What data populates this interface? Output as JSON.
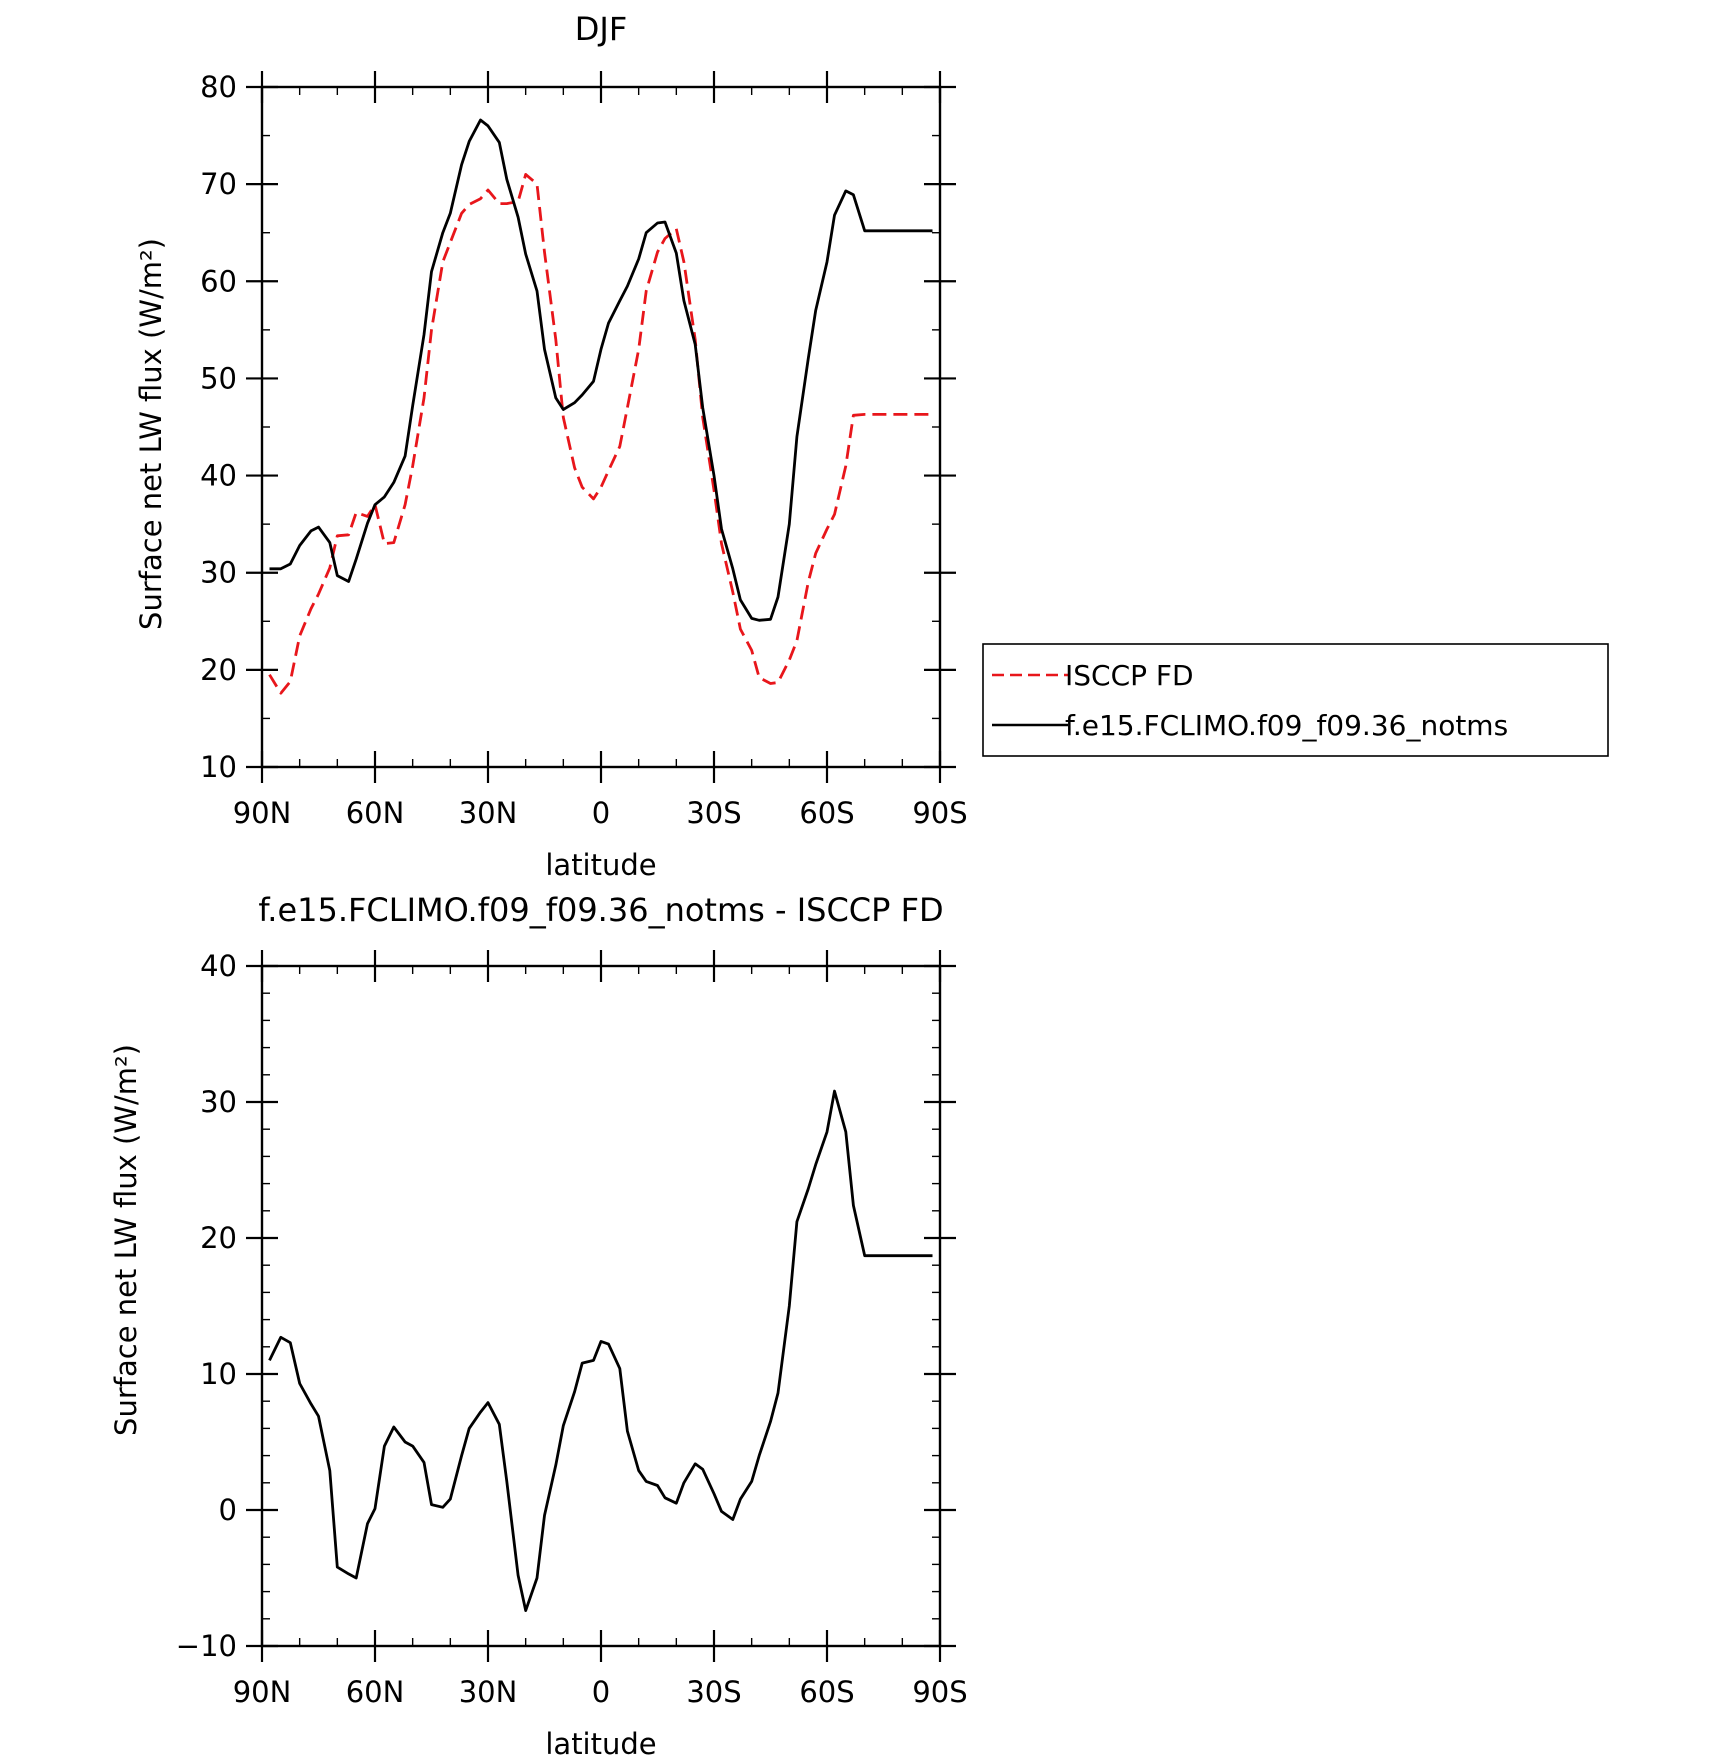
{
  "chart_data": [
    {
      "type": "line",
      "title": "DJF",
      "xlabel": "latitude",
      "ylabel": "Surface net LW flux (W/m²)",
      "xlim": [
        -90,
        90
      ],
      "ylim": [
        10,
        80
      ],
      "x_ticks": [
        {
          "value": -90,
          "label": "90N"
        },
        {
          "value": -60,
          "label": "60N"
        },
        {
          "value": -30,
          "label": "30N"
        },
        {
          "value": 0,
          "label": "0"
        },
        {
          "value": 30,
          "label": "30S"
        },
        {
          "value": 60,
          "label": "60S"
        },
        {
          "value": 90,
          "label": "90S"
        }
      ],
      "y_ticks": [
        {
          "value": 10,
          "label": "10"
        },
        {
          "value": 20,
          "label": "20"
        },
        {
          "value": 30,
          "label": "30"
        },
        {
          "value": 40,
          "label": "40"
        },
        {
          "value": 50,
          "label": "50"
        },
        {
          "value": 60,
          "label": "60"
        },
        {
          "value": 70,
          "label": "70"
        },
        {
          "value": 80,
          "label": "80"
        }
      ],
      "grid": false,
      "legend_placement": "right",
      "series": [
        {
          "name": "ISCCP FD",
          "color": "#e8161b",
          "dash": "dashed",
          "x": [
            -88,
            -85,
            -82.5,
            -80,
            -77,
            -75,
            -72,
            -70,
            -67,
            -65,
            -62,
            -60,
            -57.5,
            -55,
            -52,
            -50,
            -47,
            -45,
            -42,
            -40,
            -37,
            -35,
            -32,
            -30,
            -27,
            -25,
            -22,
            -20,
            -17,
            -15,
            -12,
            -10,
            -7,
            -5,
            -2,
            0,
            2,
            5,
            7,
            10,
            12,
            15,
            17,
            20,
            22,
            25,
            27,
            30,
            32,
            35,
            37,
            40,
            42,
            45,
            47,
            50,
            52,
            55,
            57,
            60,
            62,
            65,
            67,
            70,
            72,
            75,
            77,
            80,
            82,
            85,
            88
          ],
          "y": [
            19.5,
            17.6,
            18.8,
            23.5,
            26.3,
            27.8,
            30.5,
            33.8,
            33.9,
            36.2,
            35.8,
            37,
            33,
            33.1,
            37,
            41,
            48,
            55,
            62,
            64,
            67,
            67.9,
            68.5,
            69.4,
            68,
            68,
            68.2,
            71,
            70,
            63,
            54,
            46,
            40.8,
            38.8,
            37.6,
            38.8,
            40.5,
            43,
            47,
            53,
            59,
            63,
            64.4,
            65.4,
            62,
            54,
            46,
            38.5,
            33,
            28,
            24.2,
            22,
            19.2,
            18.6,
            18.7,
            21,
            23,
            29,
            32,
            34.5,
            36,
            41,
            46.2,
            46.3,
            46.3,
            46.3,
            46.3,
            46.3,
            46.3,
            46.3,
            46.3
          ]
        },
        {
          "name": "f.e15.FCLIMO.f09_f09.36_notms",
          "color": "#000000",
          "dash": "solid",
          "x": [
            -88,
            -85,
            -82.5,
            -80,
            -77,
            -75,
            -72,
            -70,
            -67,
            -65,
            -62,
            -60,
            -57.5,
            -55,
            -52,
            -50,
            -47,
            -45,
            -42,
            -40,
            -37,
            -35,
            -32,
            -30,
            -27,
            -25,
            -22,
            -20,
            -17,
            -15,
            -12,
            -10,
            -7,
            -5,
            -2,
            0,
            2,
            5,
            7,
            10,
            12,
            15,
            17,
            20,
            22,
            25,
            27,
            30,
            32,
            35,
            37,
            40,
            42,
            45,
            47,
            50,
            52,
            55,
            57,
            60,
            62,
            65,
            67,
            70,
            72,
            75,
            77,
            80,
            82,
            85,
            88
          ],
          "y": [
            30.4,
            30.4,
            30.9,
            32.8,
            34.3,
            34.7,
            33.1,
            29.7,
            29.1,
            31.4,
            35.1,
            37,
            37.8,
            39.3,
            42,
            47.2,
            54.5,
            61,
            65,
            67,
            72,
            74.4,
            76.6,
            76,
            74.3,
            70.5,
            66.6,
            62.8,
            59,
            53,
            48,
            46.8,
            47.5,
            48.3,
            49.7,
            53,
            55.7,
            58,
            59.5,
            62.3,
            65,
            66,
            66.1,
            62.9,
            58,
            53.5,
            47,
            40,
            34.5,
            30.4,
            27.2,
            25.3,
            25.1,
            25.2,
            27.5,
            35,
            44,
            52,
            57,
            62,
            66.8,
            69.3,
            68.9,
            65.2,
            65.2,
            65.2,
            65.2,
            65.2,
            65.2,
            65.2,
            65.2
          ]
        }
      ]
    },
    {
      "type": "line",
      "title": "f.e15.FCLIMO.f09_f09.36_notms - ISCCP FD",
      "xlabel": "latitude",
      "ylabel": "Surface net LW flux (W/m²)",
      "xlim": [
        -90,
        90
      ],
      "ylim": [
        -10,
        40
      ],
      "x_ticks": [
        {
          "value": -90,
          "label": "90N"
        },
        {
          "value": -60,
          "label": "60N"
        },
        {
          "value": -30,
          "label": "30N"
        },
        {
          "value": 0,
          "label": "0"
        },
        {
          "value": 30,
          "label": "30S"
        },
        {
          "value": 60,
          "label": "60S"
        },
        {
          "value": 90,
          "label": "90S"
        }
      ],
      "y_ticks": [
        {
          "value": -10,
          "label": "−10"
        },
        {
          "value": 0,
          "label": "0"
        },
        {
          "value": 10,
          "label": "10"
        },
        {
          "value": 20,
          "label": "20"
        },
        {
          "value": 30,
          "label": "30"
        },
        {
          "value": 40,
          "label": "40"
        }
      ],
      "grid": false,
      "series": [
        {
          "color": "#000000",
          "dash": "solid",
          "x": [
            -88,
            -85,
            -82.5,
            -80,
            -77,
            -75,
            -72,
            -70,
            -67,
            -65,
            -62,
            -60,
            -57.5,
            -55,
            -52,
            -50,
            -47,
            -45,
            -42,
            -40,
            -37,
            -35,
            -32,
            -30,
            -27,
            -25,
            -22,
            -20,
            -17,
            -15,
            -12,
            -10,
            -7,
            -5,
            -2,
            0,
            2,
            5,
            7,
            10,
            12,
            15,
            17,
            20,
            22,
            25,
            27,
            30,
            32,
            35,
            37,
            40,
            42,
            45,
            47,
            50,
            52,
            55,
            57,
            60,
            62,
            65,
            67,
            70,
            72,
            75,
            77,
            80,
            82,
            85,
            88
          ],
          "y": [
            11,
            12.7,
            12.3,
            9.3,
            7.8,
            6.9,
            2.9,
            -4.2,
            -4.7,
            -5,
            -1,
            0.1,
            4.7,
            6.1,
            5,
            4.7,
            3.5,
            0.4,
            0.2,
            0.8,
            4,
            6,
            7.2,
            7.9,
            6.3,
            2.1,
            -4.8,
            -7.4,
            -5,
            -0.4,
            3.3,
            6.2,
            8.7,
            10.8,
            11,
            12.4,
            12.2,
            10.4,
            5.8,
            2.9,
            2.1,
            1.8,
            0.9,
            0.5,
            2,
            3.4,
            3,
            1.2,
            -0.1,
            -0.7,
            0.8,
            2.1,
            4,
            6.5,
            8.6,
            15,
            21.2,
            23.6,
            25.4,
            27.8,
            30.8,
            27.8,
            22.4,
            18.7,
            18.7,
            18.7,
            18.7,
            18.7,
            18.7,
            18.7,
            18.7
          ]
        }
      ]
    }
  ]
}
